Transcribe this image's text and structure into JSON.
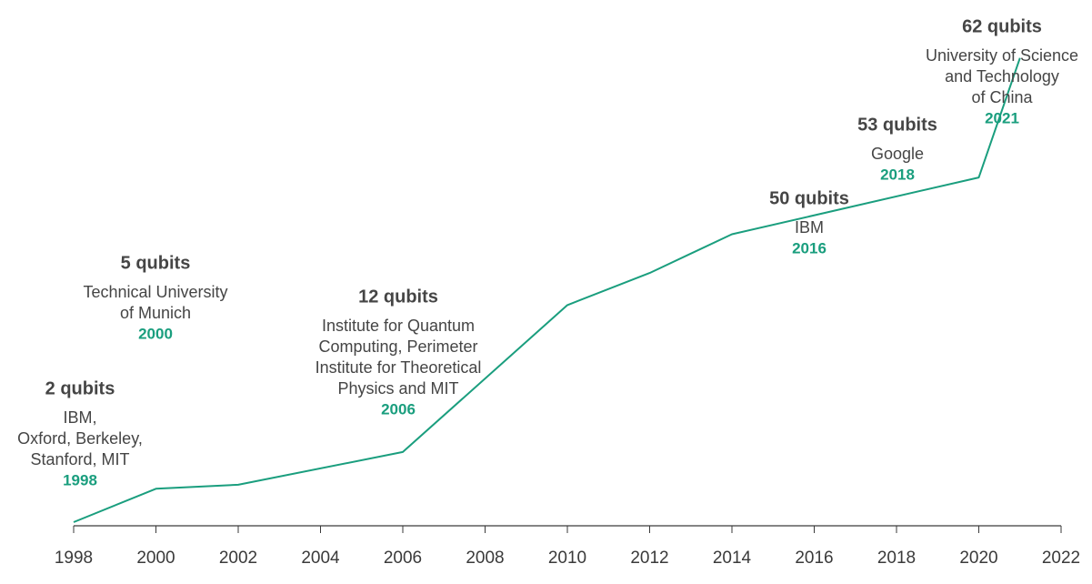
{
  "chart_data": {
    "type": "line",
    "title": "",
    "xlabel": "",
    "ylabel": "",
    "xlim": [
      1998,
      2022
    ],
    "ylim": [
      0,
      70
    ],
    "grid": false,
    "x_ticks": [
      1998,
      2000,
      2002,
      2004,
      2006,
      2008,
      2010,
      2012,
      2014,
      2016,
      2018,
      2020,
      2022
    ],
    "series": [
      {
        "color": "#1a9e7e",
        "x": [
          1998,
          2000,
          2002,
          2006,
          2010,
          2012,
          2014,
          2020,
          2021
        ],
        "y": [
          0,
          5,
          5.6,
          10.5,
          32.5,
          37.3,
          43.1,
          51.6,
          69.5
        ]
      }
    ],
    "annotations": [
      {
        "qubits": "2 qubits",
        "org_lines": [
          "IBM,",
          "Oxford, Berkeley,",
          "Stanford, MIT"
        ],
        "year": "1998"
      },
      {
        "qubits": "5 qubits",
        "org_lines": [
          "Technical University",
          "of Munich"
        ],
        "year": "2000"
      },
      {
        "qubits": "12 qubits",
        "org_lines": [
          "Institute for Quantum",
          "Computing, Perimeter",
          "Institute for Theoretical",
          "Physics and MIT"
        ],
        "year": "2006"
      },
      {
        "qubits": "50 qubits",
        "org_lines": [
          "IBM"
        ],
        "year": "2016"
      },
      {
        "qubits": "53 qubits",
        "org_lines": [
          "Google"
        ],
        "year": "2018"
      },
      {
        "qubits": "62 qubits",
        "org_lines": [
          "University of Science",
          "and Technology",
          "of China"
        ],
        "year": "2021"
      }
    ],
    "year_color": "#1a9e7e"
  }
}
